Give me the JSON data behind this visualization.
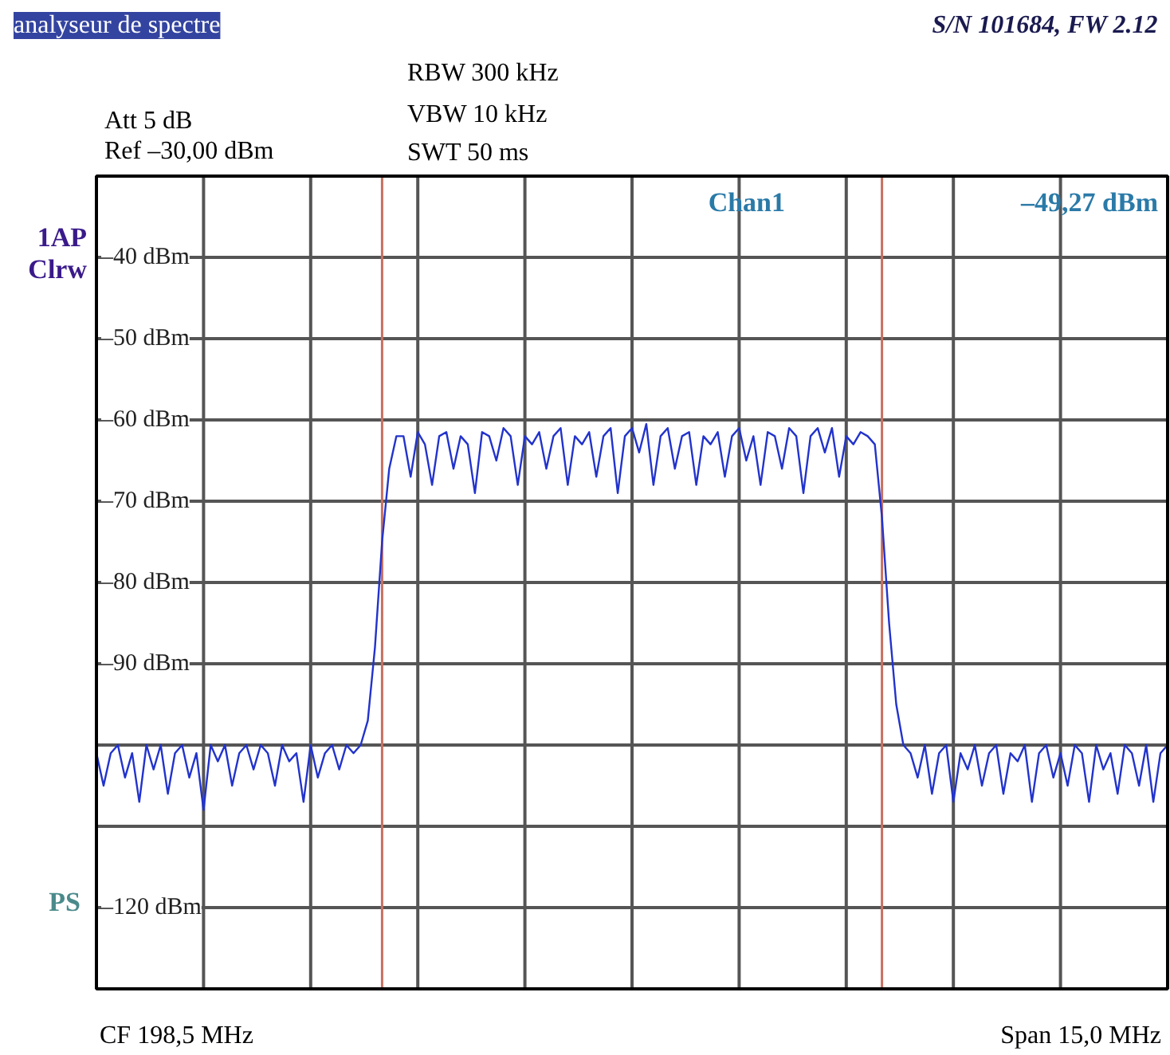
{
  "chart_data": {
    "type": "line",
    "title": "analyseur de spectre",
    "subtitle": "S/N 101684, FW 2.12",
    "annotations": [
      "RBW 300 kHz",
      "VBW 10 kHz",
      "SWT 50 ms",
      "Att  5 dB",
      "Ref  –30,00 dBm",
      "1AP",
      "Clrw",
      "Chan1",
      "–49,27 dBm",
      "PS",
      "CF 198,5 MHz",
      "Span 15,0 MHz"
    ],
    "categories": [
      null,
      null,
      null,
      null,
      null,
      null,
      null,
      null,
      null,
      null,
      null,
      null,
      null,
      null,
      null,
      null,
      null,
      null,
      null,
      null,
      null,
      null,
      null,
      null,
      null,
      null,
      null,
      null,
      null,
      null,
      null,
      null,
      null,
      null,
      null,
      null,
      null,
      null,
      null,
      null,
      null,
      null,
      null,
      null,
      null,
      null,
      null,
      null,
      null,
      null,
      null,
      null,
      null,
      null,
      null,
      null,
      null,
      null,
      null,
      null,
      null,
      null,
      null,
      null,
      null,
      null,
      null,
      null,
      null,
      null,
      null,
      null,
      null,
      null,
      null,
      null,
      null,
      null,
      null,
      null,
      null,
      null,
      null,
      null,
      null,
      null,
      null,
      null,
      null,
      null,
      null,
      null,
      null,
      null,
      null,
      null,
      null,
      null,
      null,
      null,
      null,
      null,
      null,
      null,
      null,
      null,
      null,
      null,
      null,
      null,
      null,
      null,
      null,
      null,
      null,
      null,
      null,
      null,
      null,
      null,
      null,
      null,
      null,
      null,
      null,
      null,
      null,
      null,
      null,
      null,
      null,
      null,
      null,
      null,
      null,
      null,
      null,
      null,
      null,
      null,
      null,
      null,
      null,
      null,
      null,
      null,
      null,
      null,
      null,
      null,
      null
    ],
    "series": [
      {
        "color": "#2233cc",
        "values": [
          -101,
          -105,
          -101,
          -100,
          -104,
          -101,
          -107,
          -100,
          -103,
          -100,
          -106,
          -101,
          -100,
          -104,
          -101,
          -108,
          -100,
          -102,
          -100,
          -105,
          -101,
          -100,
          -103,
          -100,
          -101,
          -105,
          -100,
          -102,
          -101,
          -107,
          -100,
          -104,
          -101,
          -100,
          -103,
          -100,
          -101,
          -100,
          -97,
          -88,
          -75,
          -66,
          -62,
          -62,
          -67,
          -61.5,
          -63,
          -68,
          -62,
          -61.5,
          -66,
          -62,
          -63,
          -69,
          -61.5,
          -62,
          -65,
          -61,
          -62,
          -68,
          -62,
          -63,
          -61.5,
          -66,
          -62,
          -61,
          -68,
          -62,
          -63,
          -61.5,
          -67,
          -62,
          -61,
          -69,
          -62,
          -61,
          -64,
          -60.5,
          -68,
          -62,
          -61,
          -66,
          -62,
          -61.5,
          -68,
          -62,
          -63,
          -61.5,
          -67,
          -62,
          -61,
          -65,
          -62,
          -68,
          -61.5,
          -62,
          -66,
          -61,
          -62,
          -69,
          -62,
          -61,
          -64,
          -61,
          -67,
          -62,
          -63,
          -61.5,
          -62,
          -63,
          -72,
          -85,
          -95,
          -100,
          -101,
          -104,
          -100,
          -106,
          -101,
          -100,
          -107,
          -101,
          -103,
          -100,
          -105,
          -101,
          -100,
          -106,
          -101,
          -102,
          -100,
          -107,
          -101,
          -100,
          -104,
          -101,
          -105,
          -100,
          -101,
          -107,
          -100,
          -103,
          -101,
          -106,
          -100,
          -101,
          -105,
          -100,
          -107,
          -101,
          -100
        ]
      }
    ],
    "ylim": [
      -130,
      -30
    ],
    "yticks": [
      {
        "value": -40,
        "label": "–40 dBm"
      },
      {
        "value": -50,
        "label": "–50 dBm"
      },
      {
        "value": -60,
        "label": "–60 dBm"
      },
      {
        "value": -70,
        "label": "–70 dBm"
      },
      {
        "value": -80,
        "label": "–80 dBm"
      },
      {
        "value": -90,
        "label": "–90 dBm"
      },
      {
        "value": -100,
        "label": null
      },
      {
        "value": -110,
        "label": null
      },
      {
        "value": -120,
        "label": "–120 dBm"
      }
    ],
    "tick_labels": "y",
    "grid": true,
    "marker": "none",
    "line_style": "solid"
  }
}
